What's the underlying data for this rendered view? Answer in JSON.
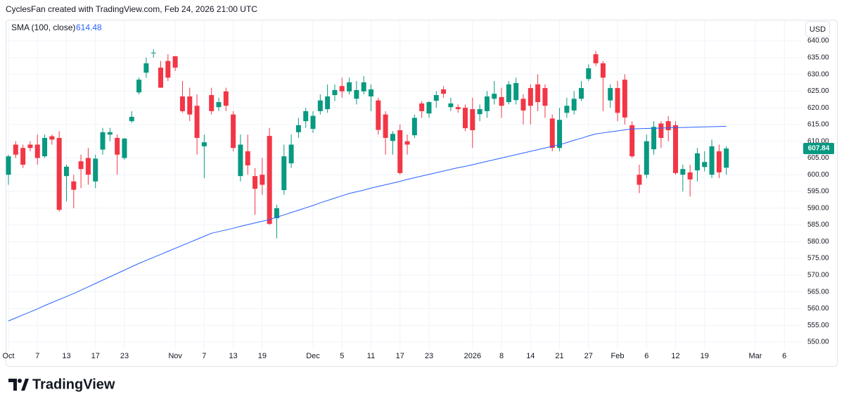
{
  "header": {
    "attribution": "CyclesFan created with TradingView.com, Feb 24, 2026 21:00 UTC"
  },
  "chart_data": {
    "type": "candlestick",
    "currency": "USD",
    "up_color": "#089981",
    "down_color": "#f23645",
    "grid": true,
    "ylim": [
      548.1,
      643.8
    ],
    "yticks": [
      {
        "value": 550,
        "label": "550.00"
      },
      {
        "value": 555,
        "label": "555.00"
      },
      {
        "value": 560,
        "label": "560.00"
      },
      {
        "value": 565,
        "label": "565.00"
      },
      {
        "value": 570,
        "label": "570.00"
      },
      {
        "value": 575,
        "label": "575.00"
      },
      {
        "value": 580,
        "label": "580.00"
      },
      {
        "value": 585,
        "label": "585.00"
      },
      {
        "value": 590,
        "label": "590.00"
      },
      {
        "value": 595,
        "label": "595.00"
      },
      {
        "value": 600,
        "label": "600.00"
      },
      {
        "value": 605,
        "label": "605.00"
      },
      {
        "value": 610,
        "label": "610.00"
      },
      {
        "value": 615,
        "label": "615.00"
      },
      {
        "value": 620,
        "label": "620.00"
      },
      {
        "value": 625,
        "label": "625.00"
      },
      {
        "value": 630,
        "label": "630.00"
      },
      {
        "value": 635,
        "label": "635.00"
      },
      {
        "value": 640,
        "label": "640.00"
      }
    ],
    "categories": [
      "Oct",
      null,
      null,
      null,
      "7",
      null,
      null,
      null,
      "13",
      null,
      null,
      null,
      "17",
      null,
      null,
      null,
      "23",
      null,
      null,
      null,
      null,
      null,
      null,
      "Nov",
      null,
      null,
      null,
      "7",
      null,
      null,
      null,
      "13",
      null,
      null,
      null,
      "19",
      null,
      null,
      null,
      null,
      null,
      null,
      "Dec",
      null,
      null,
      null,
      "5",
      null,
      null,
      null,
      "11",
      null,
      null,
      null,
      "17",
      null,
      null,
      null,
      "23",
      null,
      null,
      null,
      null,
      null,
      "2026",
      null,
      null,
      null,
      "8",
      null,
      null,
      null,
      "14",
      null,
      null,
      null,
      "21",
      null,
      null,
      null,
      "27",
      null,
      null,
      null,
      "Feb",
      null,
      null,
      null,
      "6",
      null,
      null,
      null,
      "12",
      null,
      null,
      null,
      "19",
      null,
      null,
      null,
      null,
      null,
      null,
      "Mar",
      null,
      null,
      null,
      "6"
    ],
    "open": [
      600,
      609,
      608,
      609,
      609,
      605.5,
      611.5,
      611,
      599.6,
      598,
      604,
      605,
      598,
      607.5,
      612,
      611,
      605,
      616,
      624.6,
      630.5,
      636.3,
      632,
      634,
      635.4,
      623.4,
      623.4,
      620.6,
      608.5,
      623.8,
      620.2,
      624.9,
      618,
      599.6,
      607,
      599.6,
      600,
      611.6,
      587,
      595.4,
      603.4,
      612.7,
      616,
      613.7,
      619,
      619.6,
      623.8,
      626.5,
      624.9,
      622.7,
      624.9,
      623.4,
      622.2,
      618,
      610.1,
      613.3,
      610,
      611.8,
      621.3,
      618.3,
      622.1,
      625.5,
      620.2,
      620.2,
      620,
      619.6,
      618.1,
      619,
      622.7,
      623.2,
      621.7,
      622.3,
      622.7,
      625.9,
      627,
      625.9,
      616.8,
      608,
      618.5,
      619.2,
      622.7,
      628.6,
      636,
      633.3,
      622.2,
      625.9,
      628.4,
      614.8,
      600,
      600,
      607.6,
      615.3,
      616,
      614.8,
      600,
      600.7,
      601.3,
      602.3,
      600,
      607,
      602.1,
      null,
      null,
      null,
      null,
      null,
      null,
      null,
      null
    ],
    "high": [
      606,
      610,
      609,
      610,
      612,
      612,
      612,
      613,
      603,
      600,
      606,
      608,
      606,
      614,
      614,
      612,
      611,
      619,
      629,
      635,
      637.5,
      634,
      636,
      635.5,
      628,
      626,
      624,
      612,
      626,
      623,
      626,
      619,
      612,
      612,
      602,
      605,
      614,
      591,
      609,
      612,
      617,
      620,
      619,
      624,
      627,
      627,
      629,
      629,
      628,
      629.5,
      627,
      623,
      619,
      613,
      615,
      612,
      618,
      622,
      622,
      625,
      626.5,
      623,
      621,
      621,
      623,
      621,
      625,
      628,
      626,
      628,
      629,
      624,
      627,
      630,
      627,
      618,
      620,
      623,
      625,
      628,
      633,
      637,
      634,
      627,
      628,
      630,
      616,
      603,
      612,
      616,
      616,
      617.5,
      616,
      603,
      603,
      608,
      607,
      610.5,
      609,
      608.5,
      null,
      null,
      null,
      null,
      null,
      null,
      null,
      null
    ],
    "low": [
      597,
      605,
      602,
      607,
      603,
      605,
      609,
      589,
      592,
      590,
      596,
      597,
      596,
      606,
      610,
      600,
      604.5,
      615.5,
      624,
      629,
      635,
      626,
      628,
      631,
      618.5,
      616,
      606,
      599,
      618,
      619,
      619,
      607,
      598,
      600,
      588,
      594,
      585,
      581,
      594,
      602,
      611,
      614,
      612.5,
      618,
      618.5,
      622,
      623,
      624,
      621,
      624,
      619,
      612,
      606,
      606,
      600,
      606,
      611,
      617,
      617,
      620,
      623,
      619,
      618.5,
      613,
      608,
      616,
      617,
      621,
      617,
      621,
      621,
      615,
      615,
      619,
      617,
      607,
      607,
      617,
      618,
      622,
      628,
      632.5,
      619,
      620,
      616,
      615,
      605,
      594.5,
      599,
      606,
      608,
      610,
      600,
      595,
      593.5,
      598,
      601,
      599,
      599,
      600,
      null,
      null,
      null,
      null,
      null,
      null,
      null,
      null
    ],
    "close": [
      605.5,
      606,
      603,
      608,
      605,
      611,
      610.5,
      589.5,
      602.4,
      595.5,
      601.7,
      600,
      604.8,
      612.7,
      612.7,
      606,
      610.8,
      617.3,
      628.4,
      633.3,
      636.5,
      626,
      629,
      632,
      619,
      618,
      611,
      609.7,
      619,
      621.7,
      620.6,
      608,
      609,
      602.8,
      595.8,
      597,
      585.3,
      590,
      605.5,
      609,
      614.8,
      619,
      617.6,
      622.2,
      623.4,
      625.3,
      624.9,
      627.6,
      625.3,
      627.6,
      625.5,
      613.4,
      611,
      612.2,
      600.5,
      609,
      617,
      619,
      621.7,
      623.8,
      624.2,
      621.3,
      619.6,
      613.9,
      613.3,
      619.6,
      623.4,
      624.2,
      620.6,
      627,
      627.4,
      619.2,
      620.6,
      621.7,
      620.6,
      608,
      616.4,
      620.6,
      622.7,
      625.9,
      631.8,
      633.3,
      629,
      625.9,
      618.5,
      617.1,
      605.5,
      597,
      610,
      614.3,
      611,
      613.3,
      600.5,
      601.7,
      598.6,
      606.4,
      603.8,
      608.5,
      600.7,
      607.84,
      null,
      null,
      null,
      null,
      null,
      null,
      null,
      null
    ],
    "sma": {
      "name": "SMA (100, close)",
      "color": "#2962ff",
      "values": [
        556.3,
        557.2,
        558.1,
        559.0,
        559.9,
        560.9,
        561.8,
        562.7,
        563.6,
        564.5,
        565.5,
        566.5,
        567.5,
        568.5,
        569.5,
        570.5,
        571.5,
        572.5,
        573.5,
        574.4,
        575.3,
        576.2,
        577.1,
        578.0,
        578.9,
        579.8,
        580.7,
        581.6,
        582.5,
        583.0,
        583.5,
        584.0,
        584.6,
        585.1,
        585.6,
        586.1,
        586.6,
        587.3,
        588.0,
        588.7,
        589.4,
        590.1,
        590.8,
        591.6,
        592.3,
        593.0,
        593.7,
        594.4,
        594.9,
        595.4,
        596.0,
        596.5,
        597.0,
        597.5,
        598.0,
        598.6,
        599.1,
        599.6,
        600.1,
        600.6,
        601.1,
        601.6,
        602.1,
        602.5,
        603.0,
        603.5,
        604.0,
        604.5,
        605.0,
        605.5,
        606.0,
        606.5,
        607.0,
        607.5,
        608.0,
        608.5,
        609.0,
        609.6,
        610.3,
        610.9,
        611.6,
        612.2,
        612.5,
        612.8,
        613.1,
        613.4,
        613.7,
        613.76,
        613.82,
        613.88,
        613.94,
        614.0,
        614.06,
        614.12,
        614.18,
        614.24,
        614.3,
        614.36,
        614.42,
        614.48,
        null,
        null,
        null,
        null,
        null,
        null,
        null,
        null
      ]
    }
  },
  "footer": {
    "logo_text": "TradingView"
  }
}
